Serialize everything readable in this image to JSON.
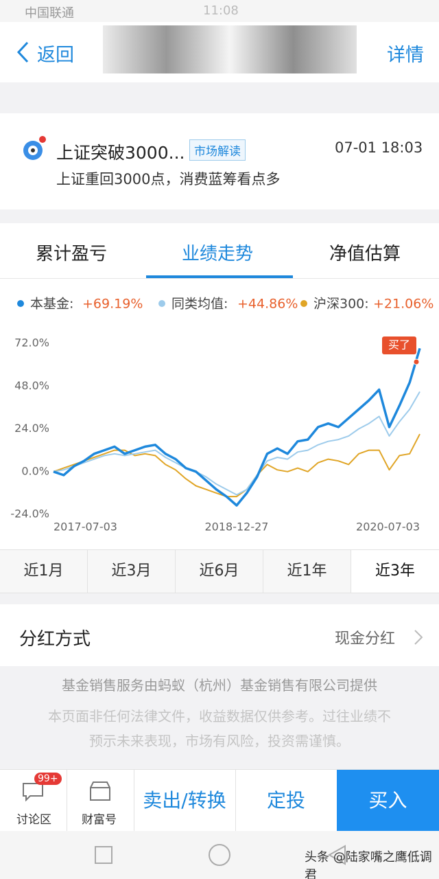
{
  "status_bar": {
    "carrier": "中国联通",
    "time": "11:08"
  },
  "nav": {
    "back": "返回",
    "details": "详情"
  },
  "news": {
    "title": "上证突破3000...",
    "tag": "市场解读",
    "time": "07-01 18:03",
    "summary": "上证重回3000点，消费蓝筹看点多"
  },
  "tabs": [
    "累计盈亏",
    "业绩走势",
    "净值估算"
  ],
  "chart_data": {
    "type": "line",
    "categories": [
      "2017-07-03",
      null,
      null,
      null,
      null,
      null,
      null,
      null,
      null,
      null,
      null,
      null,
      null,
      null,
      null,
      null,
      null,
      null,
      "2018-12-27",
      null,
      null,
      null,
      null,
      null,
      null,
      null,
      null,
      null,
      null,
      null,
      null,
      null,
      null,
      null,
      null,
      null,
      "2020-07-03"
    ],
    "series": [
      {
        "name": "本基金:",
        "color": "#1e88dc",
        "legend_label": "+69.19%",
        "values": [
          0,
          -2,
          3,
          6,
          10,
          12,
          14,
          10,
          12,
          14,
          15,
          10,
          7,
          2,
          0,
          -5,
          -10,
          -14,
          -19,
          -12,
          -3,
          10,
          13,
          10,
          17,
          18,
          25,
          27,
          25,
          30,
          35,
          40,
          46,
          25,
          37,
          50,
          69.19
        ]
      },
      {
        "name": "同类均值:",
        "color": "#9dcbeb",
        "legend_label": "+44.86%",
        "values": [
          0,
          1,
          3,
          5,
          7,
          9,
          10,
          9,
          10,
          11,
          12,
          8,
          5,
          2,
          0,
          -3,
          -7,
          -10,
          -13,
          -10,
          -2,
          6,
          8,
          7,
          11,
          12,
          15,
          17,
          18,
          20,
          24,
          27,
          31,
          20,
          28,
          35,
          44.86
        ]
      },
      {
        "name": "沪深300:",
        "color": "#e0a526",
        "legend_label": "+21.06%",
        "values": [
          0,
          2,
          4,
          6,
          8,
          10,
          12,
          12,
          9,
          10,
          9,
          4,
          1,
          -4,
          -8,
          -10,
          -12,
          -14,
          -14,
          -10,
          -2,
          4,
          1,
          0,
          2,
          0,
          5,
          7,
          6,
          4,
          10,
          12,
          12,
          1,
          9,
          10,
          21.06
        ]
      }
    ],
    "ylim": [
      -24,
      72
    ],
    "yticks": [
      {
        "value": -24,
        "label": "-24.0%"
      },
      {
        "value": 0,
        "label": "0.0%"
      },
      {
        "value": 24,
        "label": "24.0%"
      },
      {
        "value": 48,
        "label": "48.0%"
      },
      {
        "value": 72,
        "label": "72.0%"
      }
    ],
    "annotation": "买了",
    "value_label_color": "#e8602c"
  },
  "period_tabs": [
    "近1月",
    "近3月",
    "近6月",
    "近1年",
    "近3年"
  ],
  "dividend": {
    "label": "分红方式",
    "value": "现金分红"
  },
  "disclaimer": {
    "provider": "基金销售服务由蚂蚁（杭州）基金销售有限公司提供",
    "lines": [
      "本页面非任何法律文件，收益数据仅供参考。过往业绩不",
      "预示未来表现，市场有风险，投资需谨慎。"
    ]
  },
  "bottom_bar": {
    "discuss": "讨论区",
    "badge": "99+",
    "wealth": "财富号",
    "sell": "卖出/转换",
    "plan": "定投",
    "buy": "买入"
  },
  "watermark": "头条 @陆家嘴之鹰低调君"
}
